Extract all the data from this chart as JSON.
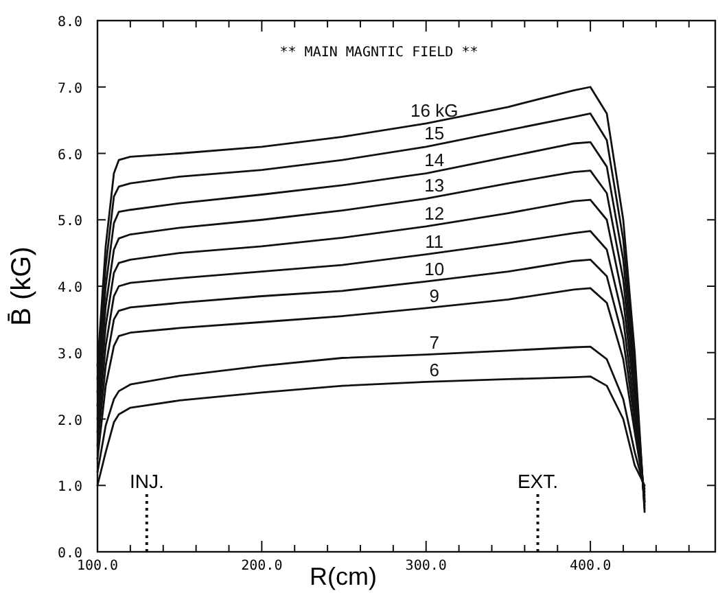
{
  "chart_data": {
    "type": "line",
    "title": "** MAIN MAGNTIC FIELD **",
    "xlabel": "R(cm)",
    "ylabel": "B̄ (kG)",
    "x": [
      100,
      105,
      110,
      113,
      120,
      150,
      200,
      249,
      300,
      350,
      390,
      400,
      410,
      420,
      427,
      433
    ],
    "series": [
      {
        "name": "16 kG",
        "color": "#111111",
        "values": [
          2.8,
          4.6,
          5.7,
          5.9,
          5.95,
          6.0,
          6.1,
          6.25,
          6.45,
          6.7,
          6.95,
          7.0,
          6.6,
          5.0,
          3.0,
          0.6
        ]
      },
      {
        "name": "15",
        "color": "#111111",
        "values": [
          2.6,
          4.3,
          5.35,
          5.5,
          5.55,
          5.65,
          5.75,
          5.9,
          6.1,
          6.35,
          6.55,
          6.6,
          6.2,
          4.7,
          2.8,
          0.65
        ]
      },
      {
        "name": "14",
        "color": "#111111",
        "values": [
          2.4,
          4.0,
          4.95,
          5.12,
          5.15,
          5.25,
          5.38,
          5.52,
          5.7,
          5.95,
          6.15,
          6.17,
          5.8,
          4.4,
          2.6,
          0.7
        ]
      },
      {
        "name": "13",
        "color": "#111111",
        "values": [
          2.2,
          3.7,
          4.55,
          4.72,
          4.78,
          4.88,
          5.0,
          5.14,
          5.32,
          5.55,
          5.72,
          5.74,
          5.4,
          4.1,
          2.45,
          0.75
        ]
      },
      {
        "name": "12",
        "color": "#111111",
        "values": [
          2.0,
          3.4,
          4.2,
          4.35,
          4.4,
          4.5,
          4.6,
          4.73,
          4.9,
          5.1,
          5.28,
          5.3,
          5.0,
          3.8,
          2.3,
          0.75
        ]
      },
      {
        "name": "11",
        "color": "#111111",
        "values": [
          1.8,
          3.1,
          3.85,
          4.0,
          4.05,
          4.12,
          4.22,
          4.32,
          4.48,
          4.65,
          4.8,
          4.83,
          4.55,
          3.5,
          2.1,
          0.8
        ]
      },
      {
        "name": "10",
        "color": "#111111",
        "values": [
          1.6,
          2.8,
          3.5,
          3.63,
          3.68,
          3.75,
          3.85,
          3.93,
          4.07,
          4.22,
          4.38,
          4.4,
          4.15,
          3.2,
          1.95,
          0.85
        ]
      },
      {
        "name": "9",
        "color": "#111111",
        "values": [
          1.4,
          2.5,
          3.1,
          3.25,
          3.3,
          3.37,
          3.46,
          3.55,
          3.67,
          3.8,
          3.95,
          3.97,
          3.75,
          2.9,
          1.8,
          0.9
        ]
      },
      {
        "name": "7",
        "color": "#111111",
        "values": [
          1.2,
          1.9,
          2.3,
          2.42,
          2.52,
          2.65,
          2.8,
          2.92,
          2.97,
          3.03,
          3.08,
          3.09,
          2.9,
          2.3,
          1.5,
          0.95
        ]
      },
      {
        "name": "6",
        "color": "#111111",
        "values": [
          1.0,
          1.5,
          1.95,
          2.07,
          2.17,
          2.28,
          2.4,
          2.5,
          2.56,
          2.6,
          2.63,
          2.64,
          2.5,
          2.0,
          1.3,
          1.0
        ]
      }
    ],
    "xlim": [
      100,
      476
    ],
    "ylim": [
      0,
      8
    ],
    "xticks": [
      {
        "value": 100,
        "label": "100.0"
      },
      {
        "value": 120,
        "label": null
      },
      {
        "value": 140,
        "label": null
      },
      {
        "value": 160,
        "label": null
      },
      {
        "value": 180,
        "label": null
      },
      {
        "value": 200,
        "label": "200.0"
      },
      {
        "value": 220,
        "label": null
      },
      {
        "value": 240,
        "label": null
      },
      {
        "value": 260,
        "label": null
      },
      {
        "value": 280,
        "label": null
      },
      {
        "value": 300,
        "label": "300.0"
      },
      {
        "value": 320,
        "label": null
      },
      {
        "value": 340,
        "label": null
      },
      {
        "value": 360,
        "label": null
      },
      {
        "value": 380,
        "label": null
      },
      {
        "value": 400,
        "label": "400.0"
      },
      {
        "value": 420,
        "label": null
      },
      {
        "value": 440,
        "label": null
      },
      {
        "value": 460,
        "label": null
      }
    ],
    "yticks": [
      {
        "value": 0,
        "label": "0.0"
      },
      {
        "value": 1,
        "label": "1.0"
      },
      {
        "value": 2,
        "label": "2.0"
      },
      {
        "value": 3,
        "label": "3.0"
      },
      {
        "value": 4,
        "label": "4.0"
      },
      {
        "value": 5,
        "label": "5.0"
      },
      {
        "value": 6,
        "label": "6.0"
      },
      {
        "value": 7,
        "label": "7.0"
      },
      {
        "value": 8,
        "label": "8.0"
      }
    ],
    "ref_lines": [
      {
        "axis": "x",
        "value": 130,
        "label": "INJ.",
        "line_style": "dotted"
      },
      {
        "axis": "x",
        "value": 368,
        "label": "EXT.",
        "line_style": "dotted"
      }
    ],
    "grid": false,
    "marker": "none",
    "line_style": "solid"
  }
}
